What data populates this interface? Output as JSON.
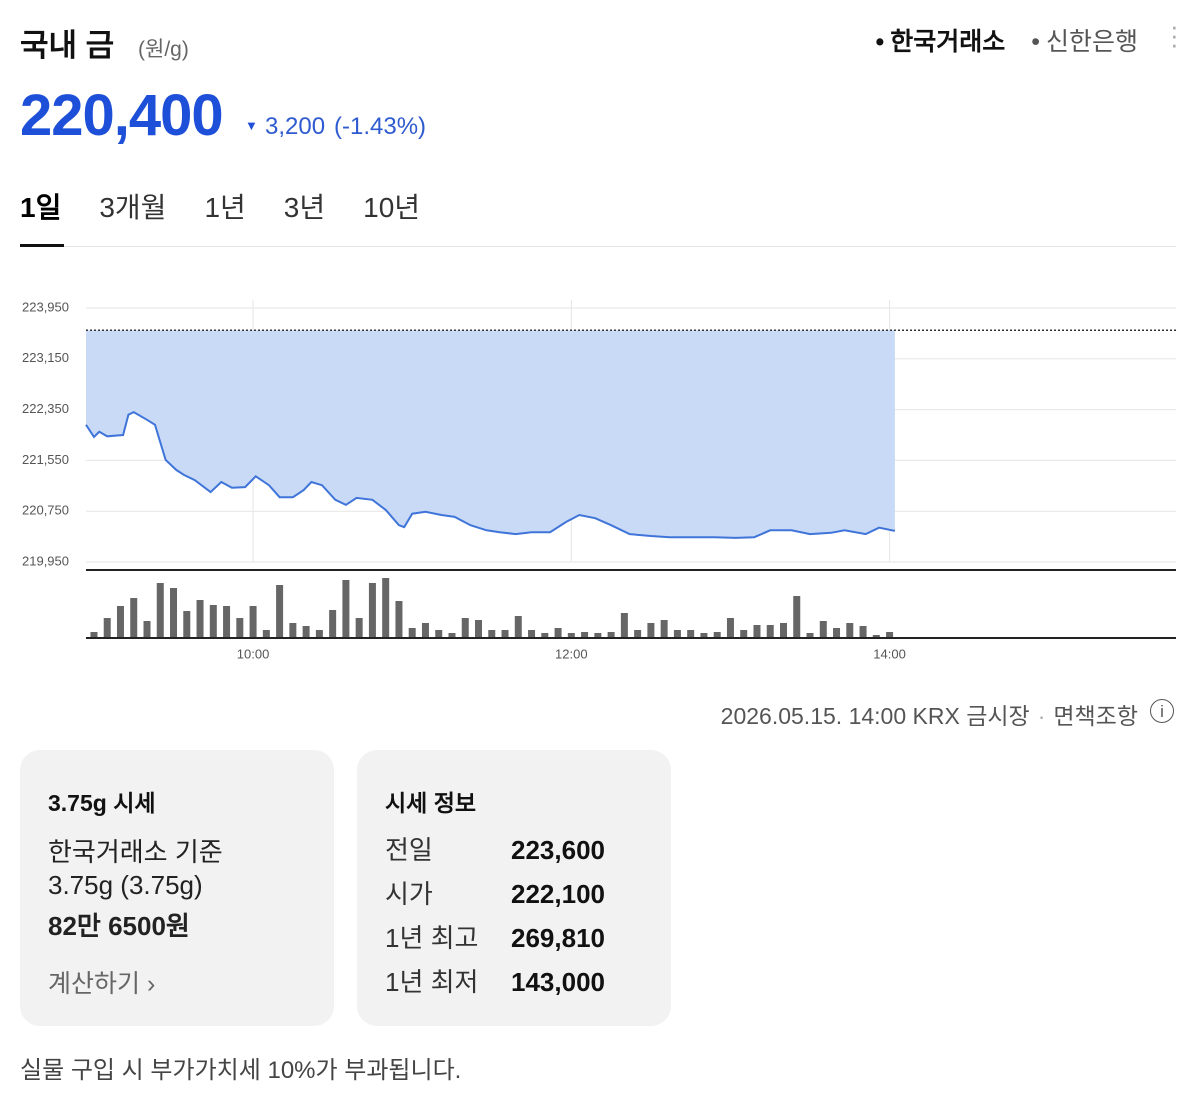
{
  "header": {
    "title": "국내 금",
    "unit": "(원/g)",
    "sources": [
      "한국거래소",
      "신한은행"
    ],
    "active_source": 0
  },
  "price": {
    "value": "220,400",
    "change": "3,200",
    "change_pct": "(-1.43%)"
  },
  "periods": {
    "tabs": [
      "1일",
      "3개월",
      "1년",
      "3년",
      "10년"
    ],
    "active": 0
  },
  "chart_data": {
    "type": "line",
    "x": [
      537,
      540,
      542,
      545,
      551,
      553,
      555,
      560,
      563,
      567,
      571,
      574,
      578,
      584,
      588,
      592,
      597,
      601,
      606,
      610,
      615,
      619,
      622,
      626,
      631,
      635,
      639,
      645,
      650,
      655,
      657,
      660,
      665,
      671,
      676,
      682,
      688,
      693,
      699,
      705,
      712,
      718,
      723,
      729,
      735,
      742,
      750,
      757,
      767,
      774,
      782,
      789,
      795,
      803,
      810,
      818,
      823,
      831,
      836,
      842
    ],
    "series": [
      {
        "name": "한국거래소",
        "color": "#3f74d9",
        "fill": "#c9daf6",
        "values": [
          222110,
          221920,
          222000,
          221930,
          221950,
          222270,
          222310,
          222190,
          222110,
          221560,
          221400,
          221320,
          221240,
          221050,
          221210,
          221120,
          221130,
          221300,
          221160,
          220970,
          220970,
          221080,
          221210,
          221160,
          220930,
          220850,
          220960,
          220930,
          220770,
          220530,
          220500,
          220710,
          220740,
          220690,
          220660,
          220530,
          220450,
          220420,
          220390,
          220420,
          220420,
          220580,
          220690,
          220640,
          220530,
          220390,
          220360,
          220340,
          220340,
          220340,
          220330,
          220340,
          220450,
          220450,
          220390,
          220410,
          220450,
          220390,
          220490,
          220440
        ]
      }
    ],
    "reference_line": 223600,
    "xlim": [
      537,
      948
    ],
    "ylim": [
      219950,
      223950
    ],
    "yticks": [
      {
        "value": 219950,
        "label": "219,950"
      },
      {
        "value": 220750,
        "label": "220,750"
      },
      {
        "value": 221550,
        "label": "221,550"
      },
      {
        "value": 222350,
        "label": "222,350"
      },
      {
        "value": 223150,
        "label": "223,150"
      },
      {
        "value": 223950,
        "label": "223,950"
      }
    ],
    "xticks": [
      {
        "value": 600,
        "label": "10:00"
      },
      {
        "value": 720,
        "label": "12:00"
      },
      {
        "value": 840,
        "label": "14:00"
      }
    ],
    "grid": true,
    "volume": {
      "color": "#666666",
      "ylim": [
        0,
        62
      ],
      "x": [
        540,
        545,
        550,
        555,
        560,
        565,
        570,
        575,
        580,
        585,
        590,
        595,
        600,
        605,
        610,
        615,
        620,
        625,
        630,
        635,
        640,
        645,
        650,
        655,
        660,
        665,
        670,
        675,
        680,
        685,
        690,
        695,
        700,
        705,
        710,
        715,
        720,
        725,
        730,
        735,
        740,
        745,
        750,
        755,
        760,
        765,
        770,
        775,
        780,
        785,
        790,
        795,
        800,
        805,
        810,
        815,
        820,
        825,
        830,
        835,
        840
      ],
      "values": [
        6,
        20,
        32,
        40,
        17,
        55,
        50,
        27,
        38,
        33,
        32,
        20,
        32,
        8,
        53,
        15,
        12,
        8,
        28,
        58,
        20,
        55,
        60,
        37,
        10,
        15,
        8,
        5,
        20,
        18,
        8,
        8,
        22,
        8,
        5,
        10,
        5,
        6,
        5,
        6,
        25,
        8,
        15,
        18,
        8,
        8,
        5,
        6,
        20,
        8,
        13,
        13,
        15,
        42,
        5,
        17,
        10,
        15,
        12,
        3,
        6
      ]
    }
  },
  "footer": {
    "timestamp": "2026.05.15. 14:00 KRX 금시장",
    "disclaimer": "면책조항"
  },
  "cards": [
    {
      "title": "3.75g 시세",
      "lines": [
        "한국거래소 기준",
        "3.75g (3.75g)",
        "82만 6500원"
      ],
      "link": "계산하기"
    }
  ],
  "info": {
    "title": "시세 정보",
    "rows": [
      [
        "전일",
        "223,600"
      ],
      [
        "시가",
        "222,100"
      ],
      [
        "1년 최고",
        "269,810"
      ],
      [
        "1년 최저",
        "143,000"
      ]
    ]
  },
  "note": "실물 구입 시 부가가치세 10%가 부과됩니다."
}
